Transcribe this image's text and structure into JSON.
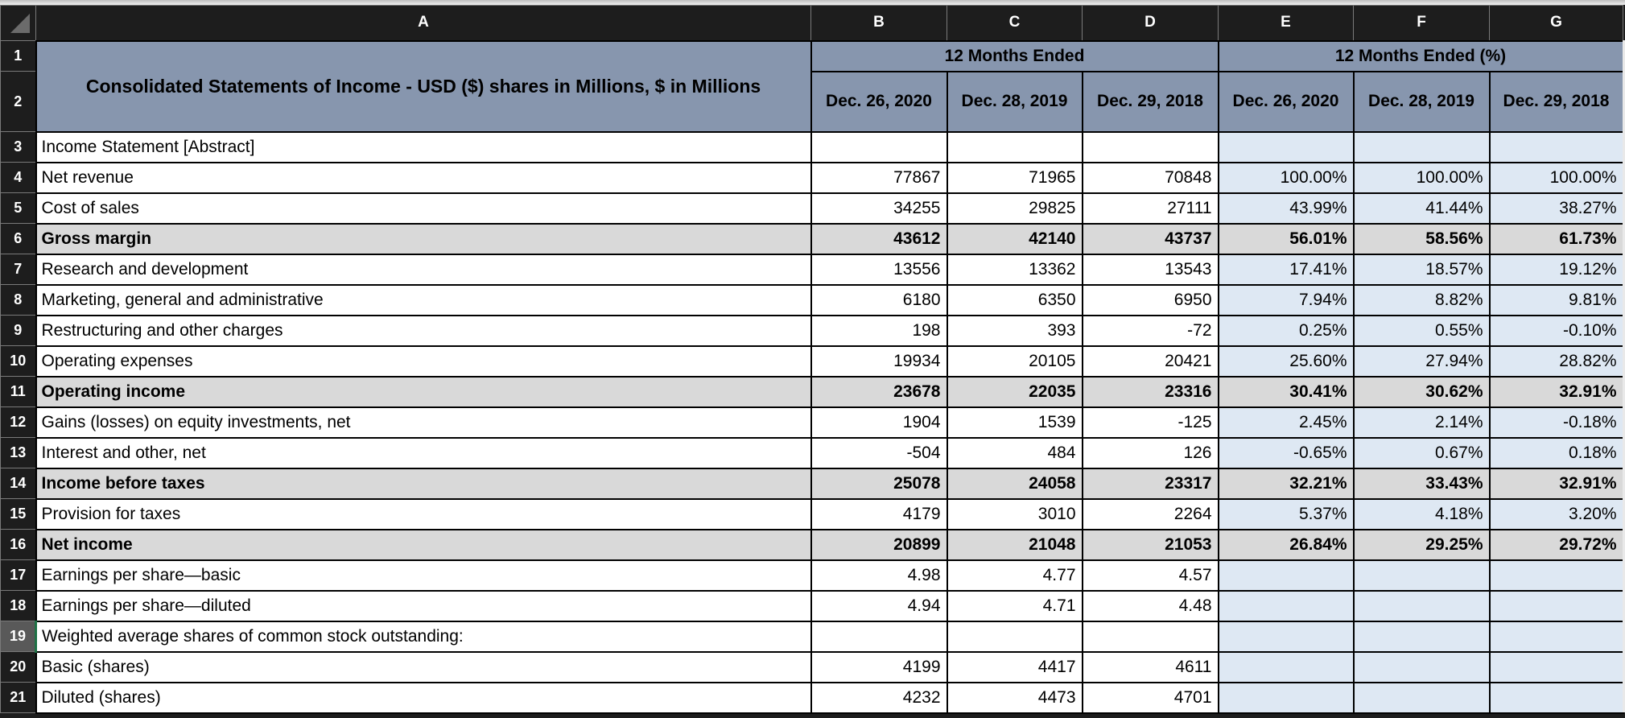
{
  "sheet": {
    "column_letters": [
      "A",
      "B",
      "C",
      "D",
      "E",
      "F",
      "G"
    ],
    "header_row_numbers": [
      "1",
      "2"
    ],
    "title": "Consolidated Statements of Income - USD ($) shares in Millions, $ in Millions",
    "group_headers": [
      "12 Months Ended",
      "12 Months Ended (%)"
    ],
    "date_headers": [
      "Dec. 26, 2020",
      "Dec. 28, 2019",
      "Dec. 29, 2018",
      "Dec. 26, 2020",
      "Dec. 28, 2019",
      "Dec. 29, 2018"
    ],
    "rows": [
      {
        "num": "3",
        "label": "Income Statement [Abstract]",
        "values": [
          "",
          "",
          "",
          "",
          "",
          ""
        ],
        "style": "plain"
      },
      {
        "num": "4",
        "label": "Net revenue",
        "values": [
          "77867",
          "71965",
          "70848",
          "100.00%",
          "100.00%",
          "100.00%"
        ],
        "style": "plain"
      },
      {
        "num": "5",
        "label": "Cost of sales",
        "values": [
          "34255",
          "29825",
          "27111",
          "43.99%",
          "41.44%",
          "38.27%"
        ],
        "style": "plain"
      },
      {
        "num": "6",
        "label": "Gross margin",
        "values": [
          "43612",
          "42140",
          "43737",
          "56.01%",
          "58.56%",
          "61.73%"
        ],
        "style": "subtotal"
      },
      {
        "num": "7",
        "label": "Research and development",
        "values": [
          "13556",
          "13362",
          "13543",
          "17.41%",
          "18.57%",
          "19.12%"
        ],
        "style": "plain"
      },
      {
        "num": "8",
        "label": "Marketing, general and administrative",
        "values": [
          "6180",
          "6350",
          "6950",
          "7.94%",
          "8.82%",
          "9.81%"
        ],
        "style": "plain"
      },
      {
        "num": "9",
        "label": "Restructuring and other charges",
        "values": [
          "198",
          "393",
          "-72",
          "0.25%",
          "0.55%",
          "-0.10%"
        ],
        "style": "plain"
      },
      {
        "num": "10",
        "label": "Operating expenses",
        "values": [
          "19934",
          "20105",
          "20421",
          "25.60%",
          "27.94%",
          "28.82%"
        ],
        "style": "plain"
      },
      {
        "num": "11",
        "label": "Operating income",
        "values": [
          "23678",
          "22035",
          "23316",
          "30.41%",
          "30.62%",
          "32.91%"
        ],
        "style": "subtotal"
      },
      {
        "num": "12",
        "label": "Gains (losses) on equity investments, net",
        "values": [
          "1904",
          "1539",
          "-125",
          "2.45%",
          "2.14%",
          "-0.18%"
        ],
        "style": "plain"
      },
      {
        "num": "13",
        "label": "Interest and other, net",
        "values": [
          "-504",
          "484",
          "126",
          "-0.65%",
          "0.67%",
          "0.18%"
        ],
        "style": "plain"
      },
      {
        "num": "14",
        "label": "Income before taxes",
        "values": [
          "25078",
          "24058",
          "23317",
          "32.21%",
          "33.43%",
          "32.91%"
        ],
        "style": "subtotal"
      },
      {
        "num": "15",
        "label": "Provision for taxes",
        "values": [
          "4179",
          "3010",
          "2264",
          "5.37%",
          "4.18%",
          "3.20%"
        ],
        "style": "plain"
      },
      {
        "num": "16",
        "label": "Net income",
        "values": [
          "20899",
          "21048",
          "21053",
          "26.84%",
          "29.25%",
          "29.72%"
        ],
        "style": "subtotal"
      },
      {
        "num": "17",
        "label": "Earnings per share—basic",
        "values": [
          "4.98",
          "4.77",
          "4.57",
          "",
          "",
          ""
        ],
        "style": "plain"
      },
      {
        "num": "18",
        "label": "Earnings per share—diluted",
        "values": [
          "4.94",
          "4.71",
          "4.48",
          "",
          "",
          ""
        ],
        "style": "plain"
      },
      {
        "num": "19",
        "label": "Weighted average shares of common stock outstanding:",
        "values": [
          "",
          "",
          "",
          "",
          "",
          ""
        ],
        "style": "plain",
        "selected": true
      },
      {
        "num": "20",
        "label": "Basic (shares)",
        "values": [
          "4199",
          "4417",
          "4611",
          "",
          "",
          ""
        ],
        "style": "plain"
      },
      {
        "num": "21",
        "label": "Diluted (shares)",
        "values": [
          "4232",
          "4473",
          "4701",
          "",
          "",
          ""
        ],
        "style": "plain"
      }
    ],
    "colors": {
      "chrome_dark": "#1D1D1D",
      "header_fill": "#8796AE",
      "percent_fill": "#DEE8F3",
      "subtotal_fill": "#D9D9D9",
      "selected_rownum_fill": "#595959",
      "selection_green": "#1E7145",
      "grid_line": "#000000"
    }
  }
}
